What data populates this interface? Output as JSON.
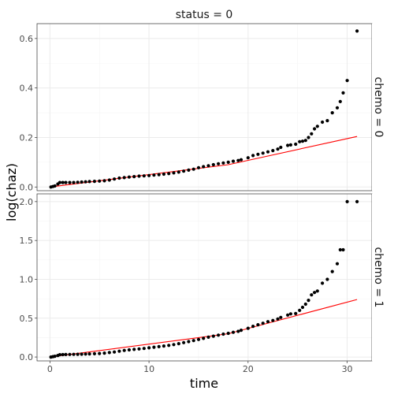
{
  "chart_data": {
    "type": "scatter",
    "xlabel": "time",
    "ylabel": "log(chaz)",
    "facet_col_label": "status = 0",
    "xlim": [
      -1.3,
      32.5
    ],
    "x_ticks": [
      0,
      10,
      20,
      30
    ],
    "grid": true,
    "colors": {
      "points": "#000000",
      "fit_line": "#ff0000"
    },
    "panels": [
      {
        "row_label": "chemo = 0",
        "ylim": [
          -0.015,
          0.66
        ],
        "y_ticks": [
          0.0,
          0.2,
          0.4,
          0.6
        ],
        "y_tick_labels": [
          "0.0",
          "0.2",
          "0.4",
          "0.6"
        ],
        "points": {
          "x": [
            0.1,
            0.3,
            0.5,
            0.8,
            1.0,
            1.3,
            1.6,
            2.0,
            2.4,
            2.8,
            3.2,
            3.6,
            4.0,
            4.5,
            5.0,
            5.5,
            6.0,
            6.5,
            7.0,
            7.5,
            8.0,
            8.5,
            9.0,
            9.5,
            10.0,
            10.5,
            11.0,
            11.5,
            12.0,
            12.5,
            13.0,
            13.5,
            14.0,
            14.5,
            15.0,
            15.5,
            16.0,
            16.5,
            17.0,
            17.5,
            18.0,
            18.5,
            19.0,
            19.3,
            20.0,
            20.5,
            21.0,
            21.5,
            22.0,
            22.5,
            23.0,
            23.3,
            24.0,
            24.3,
            24.8,
            25.2,
            25.5,
            25.8,
            26.1,
            26.4,
            26.7,
            27.0,
            27.5,
            28.0,
            28.5,
            29.0,
            29.3,
            29.6,
            30.0,
            31.0
          ],
          "y": [
            0.0,
            0.002,
            0.004,
            0.012,
            0.018,
            0.018,
            0.018,
            0.018,
            0.018,
            0.019,
            0.02,
            0.021,
            0.022,
            0.023,
            0.024,
            0.025,
            0.028,
            0.032,
            0.036,
            0.038,
            0.04,
            0.042,
            0.044,
            0.045,
            0.046,
            0.048,
            0.05,
            0.052,
            0.054,
            0.057,
            0.06,
            0.064,
            0.068,
            0.072,
            0.078,
            0.082,
            0.086,
            0.09,
            0.094,
            0.097,
            0.1,
            0.104,
            0.107,
            0.11,
            0.118,
            0.127,
            0.132,
            0.137,
            0.142,
            0.147,
            0.153,
            0.16,
            0.168,
            0.17,
            0.173,
            0.183,
            0.185,
            0.188,
            0.2,
            0.215,
            0.235,
            0.245,
            0.262,
            0.268,
            0.3,
            0.32,
            0.345,
            0.38,
            0.43,
            0.63
          ]
        },
        "fit_line": {
          "x": [
            0,
            18,
            31
          ],
          "y": [
            0.0,
            0.09,
            0.204
          ]
        }
      },
      {
        "row_label": "chemo = 1",
        "ylim": [
          -0.05,
          2.1
        ],
        "y_ticks": [
          0.0,
          0.5,
          1.0,
          1.5,
          2.0
        ],
        "y_tick_labels": [
          "0.0",
          "0.5",
          "1.0",
          "1.5",
          "2.0"
        ],
        "points": {
          "x": [
            0.1,
            0.3,
            0.5,
            0.8,
            1.0,
            1.3,
            1.6,
            2.0,
            2.4,
            2.8,
            3.2,
            3.6,
            4.0,
            4.5,
            5.0,
            5.5,
            6.0,
            6.5,
            7.0,
            7.5,
            8.0,
            8.5,
            9.0,
            9.5,
            10.0,
            10.5,
            11.0,
            11.5,
            12.0,
            12.5,
            13.0,
            13.5,
            14.0,
            14.5,
            15.0,
            15.5,
            16.0,
            16.5,
            17.0,
            17.5,
            18.0,
            18.5,
            19.0,
            19.3,
            20.0,
            20.5,
            21.0,
            21.5,
            22.0,
            22.5,
            23.0,
            23.3,
            24.0,
            24.3,
            24.8,
            25.2,
            25.5,
            25.8,
            26.1,
            26.4,
            26.7,
            27.0,
            27.5,
            28.0,
            28.5,
            29.0,
            29.3,
            29.6,
            30.0,
            31.0
          ],
          "y": [
            0.0,
            0.005,
            0.01,
            0.02,
            0.03,
            0.031,
            0.032,
            0.033,
            0.034,
            0.035,
            0.036,
            0.038,
            0.04,
            0.042,
            0.045,
            0.05,
            0.058,
            0.065,
            0.075,
            0.085,
            0.092,
            0.098,
            0.104,
            0.11,
            0.118,
            0.126,
            0.134,
            0.142,
            0.15,
            0.16,
            0.172,
            0.185,
            0.198,
            0.212,
            0.226,
            0.24,
            0.255,
            0.268,
            0.282,
            0.295,
            0.305,
            0.318,
            0.33,
            0.345,
            0.37,
            0.395,
            0.415,
            0.435,
            0.455,
            0.47,
            0.49,
            0.51,
            0.54,
            0.555,
            0.56,
            0.6,
            0.64,
            0.68,
            0.73,
            0.8,
            0.83,
            0.85,
            0.95,
            1.0,
            1.1,
            1.2,
            1.38,
            1.38,
            2.0,
            2.0
          ]
        },
        "fit_line": {
          "x": [
            0,
            18,
            31
          ],
          "y": [
            0.0,
            0.3,
            0.74
          ]
        }
      }
    ]
  }
}
